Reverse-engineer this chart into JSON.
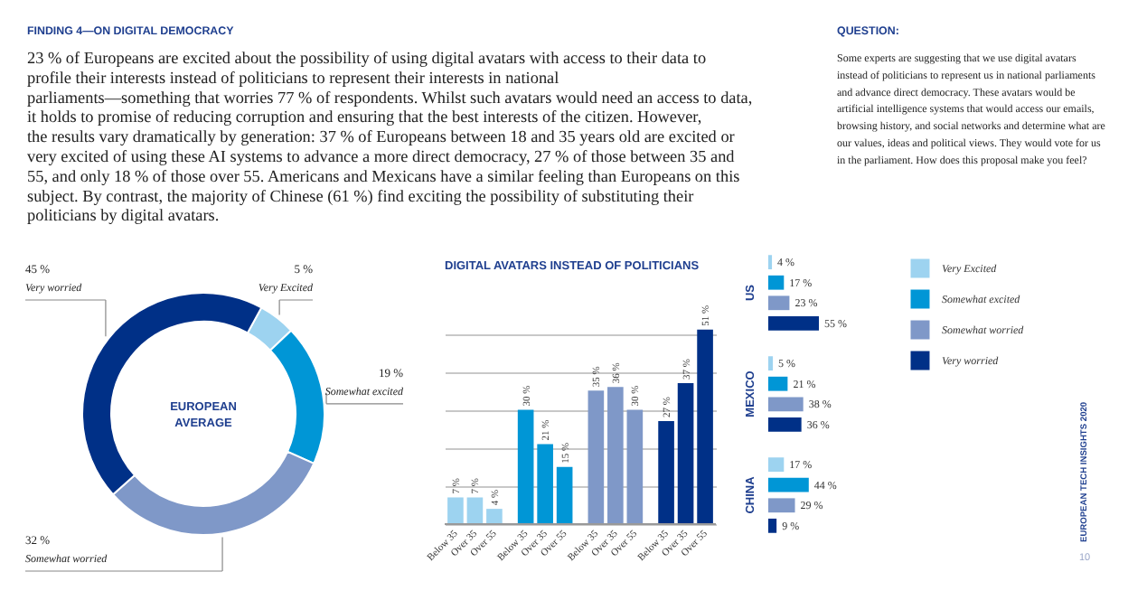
{
  "chart_data": [
    {
      "type": "donut",
      "title": "FINDING 4—ON DIGITAL DEMOCRACY",
      "subtitle": "23 % of Europeans are excited about the possibility of using digital avatars with access to their data to profile their interests instead of politicians to represent their interests in national parliaments—something that worries 77 % of respondents. Whilst such avatars would need an access to data, it holds to promise of reducing corruption and ensuring that the best interests of the citizen. However, the results vary dramatically by generation: 37 % of Europeans between 18 and 35 years old are excited or very excited of using these AI systems to advance a more direct democracy, 27 % of those between 35 and 55, and only 18 % of those over 55. Americans and Mexicans have a similar feeling than Europeans on this subject. By contrast, the majority of Chinese (61 %) find exciting the possibility of substituting their politicians by digital avatars.",
      "annotations": [
        "EUROPEAN AVERAGE",
        "QUESTION:",
        "Some experts are suggesting that we use digital avatars instead of politicians to represent us in national parliaments and advance direct democracy. These avatars would be artificial intelligence systems that would access our emails, browsing history, and social networks and determine what are our values, ideas and political views. They would vote for us in the parliament. How does this proposal make you feel?",
        "EUROPEAN TECH INSIGHTS 2020",
        "10"
      ],
      "categories": [
        "Very Excited",
        "Somewhat excited",
        "Somewhat worried",
        "Very worried"
      ],
      "values": [
        5,
        19,
        32,
        45
      ],
      "colors": [
        "#9dd3f0",
        "#0096d6",
        "#7f98c8",
        "#003087"
      ],
      "value_labels": [
        "5 %",
        "19 %",
        "32 %",
        "45 %"
      ]
    },
    {
      "type": "bar",
      "title": "DIGITAL AVATARS INSTEAD OF POLITICIANS",
      "categories": [
        null,
        null,
        null,
        null
      ],
      "series": [
        {
          "name": "Below 35",
          "colors": [
            "#9dd3f0",
            "#0096d6",
            "#7f98c8",
            "#003087"
          ],
          "values": [
            7,
            30,
            35,
            27
          ],
          "value_labels": [
            "7 %",
            "30 %",
            "35 %",
            "27 %"
          ]
        },
        {
          "name": "Over 35",
          "colors": [
            "#9dd3f0",
            "#0096d6",
            "#7f98c8",
            "#003087"
          ],
          "values": [
            7,
            21,
            36,
            37
          ],
          "value_labels": [
            "7 %",
            "21 %",
            "36 %",
            "37 %"
          ]
        },
        {
          "name": "Over 55",
          "colors": [
            "#9dd3f0",
            "#0096d6",
            "#7f98c8",
            "#003087"
          ],
          "values": [
            4,
            15,
            30,
            51
          ],
          "value_labels": [
            "4 %",
            "15 %",
            "30 %",
            "51 %"
          ]
        }
      ],
      "grid": "y",
      "tick_labels": false
    },
    {
      "type": "bar",
      "orientation": "horizontal",
      "categories": [
        "US",
        "MEXICO",
        "CHINA"
      ],
      "series": [
        {
          "name": "Very Excited",
          "color": "#9dd3f0",
          "values": [
            4,
            5,
            17
          ],
          "value_labels": [
            "4 %",
            "5 %",
            "17 %"
          ]
        },
        {
          "name": "Somewhat excited",
          "color": "#0096d6",
          "values": [
            17,
            21,
            44
          ],
          "value_labels": [
            "17 %",
            "21 %",
            "44 %"
          ]
        },
        {
          "name": "Somewhat worried",
          "color": "#7f98c8",
          "values": [
            23,
            38,
            29
          ],
          "value_labels": [
            "23 %",
            "38 %",
            "29 %"
          ]
        },
        {
          "name": "Very worried",
          "color": "#003087",
          "values": [
            55,
            36,
            9
          ],
          "value_labels": [
            "55 %",
            "36 %",
            "9 %"
          ]
        }
      ],
      "legend": "right",
      "tick_labels": "y"
    }
  ]
}
